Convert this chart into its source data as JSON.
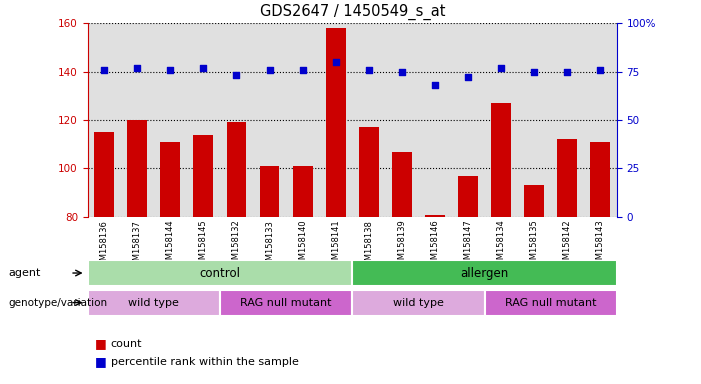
{
  "title": "GDS2647 / 1450549_s_at",
  "samples": [
    "GSM158136",
    "GSM158137",
    "GSM158144",
    "GSM158145",
    "GSM158132",
    "GSM158133",
    "GSM158140",
    "GSM158141",
    "GSM158138",
    "GSM158139",
    "GSM158146",
    "GSM158147",
    "GSM158134",
    "GSM158135",
    "GSM158142",
    "GSM158143"
  ],
  "counts": [
    115,
    120,
    111,
    114,
    119,
    101,
    101,
    158,
    117,
    107,
    81,
    97,
    127,
    93,
    112,
    111
  ],
  "percentile_ranks": [
    76,
    77,
    76,
    77,
    73,
    76,
    76,
    80,
    76,
    75,
    68,
    72,
    77,
    75,
    75,
    76
  ],
  "y_min": 80,
  "y_max": 160,
  "y_ticks": [
    80,
    100,
    120,
    140,
    160
  ],
  "y2_ticks": [
    0,
    25,
    50,
    75,
    100
  ],
  "bar_color": "#cc0000",
  "dot_color": "#0000cc",
  "background_color": "#ffffff",
  "plot_bg_color": "#e0e0e0",
  "agent_groups": [
    {
      "label": "control",
      "start": 0,
      "end": 8,
      "color": "#aaddaa"
    },
    {
      "label": "allergen",
      "start": 8,
      "end": 16,
      "color": "#44bb55"
    }
  ],
  "genotype_groups": [
    {
      "label": "wild type",
      "start": 0,
      "end": 4,
      "color": "#ddaadd"
    },
    {
      "label": "RAG null mutant",
      "start": 4,
      "end": 8,
      "color": "#cc66cc"
    },
    {
      "label": "wild type",
      "start": 8,
      "end": 12,
      "color": "#ddaadd"
    },
    {
      "label": "RAG null mutant",
      "start": 12,
      "end": 16,
      "color": "#cc66cc"
    }
  ],
  "legend_count_color": "#cc0000",
  "legend_pct_color": "#0000cc"
}
